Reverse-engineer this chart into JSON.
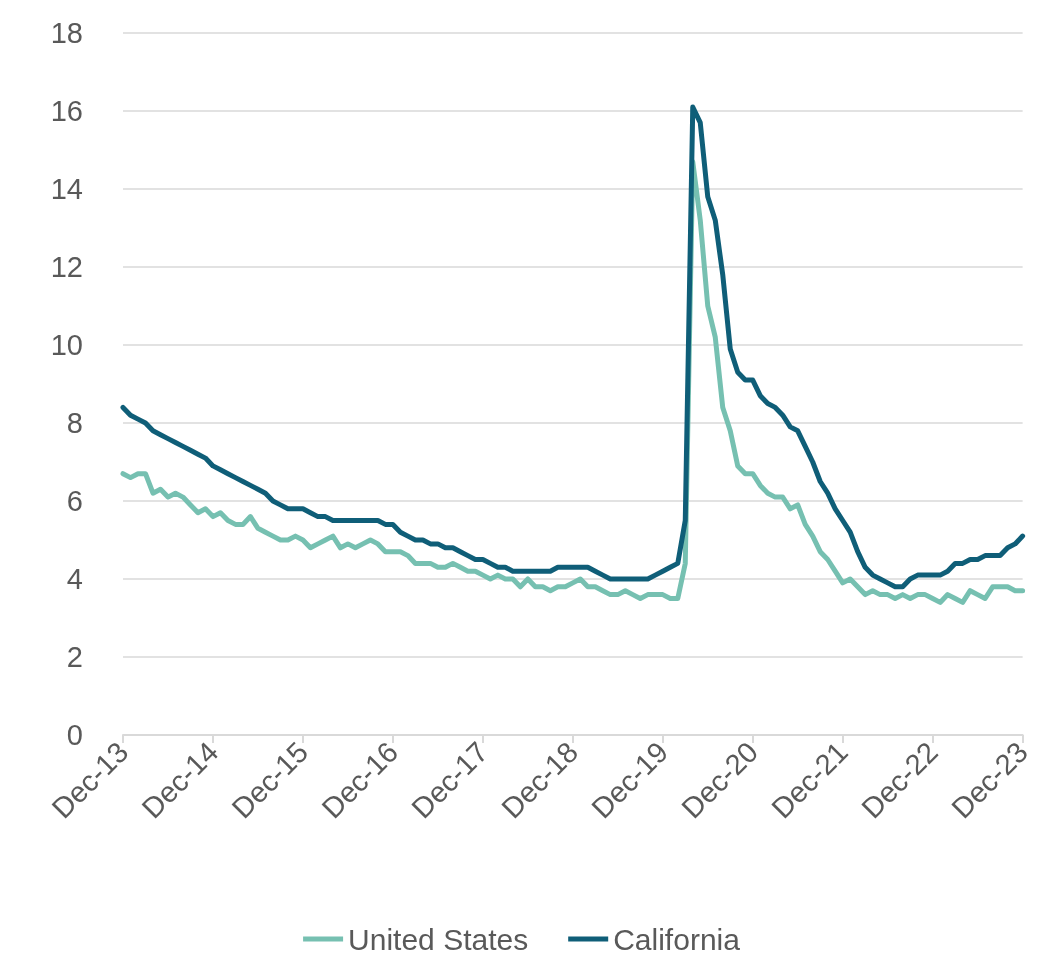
{
  "chart_data": {
    "type": "line",
    "categories": [
      "Dec-13",
      null,
      null,
      null,
      null,
      null,
      null,
      null,
      null,
      null,
      null,
      null,
      "Dec-14",
      null,
      null,
      null,
      null,
      null,
      null,
      null,
      null,
      null,
      null,
      null,
      "Dec-15",
      null,
      null,
      null,
      null,
      null,
      null,
      null,
      null,
      null,
      null,
      null,
      "Dec-16",
      null,
      null,
      null,
      null,
      null,
      null,
      null,
      null,
      null,
      null,
      null,
      "Dec-17",
      null,
      null,
      null,
      null,
      null,
      null,
      null,
      null,
      null,
      null,
      null,
      "Dec-18",
      null,
      null,
      null,
      null,
      null,
      null,
      null,
      null,
      null,
      null,
      null,
      "Dec-19",
      null,
      null,
      null,
      null,
      null,
      null,
      null,
      null,
      null,
      null,
      null,
      "Dec-20",
      null,
      null,
      null,
      null,
      null,
      null,
      null,
      null,
      null,
      null,
      null,
      "Dec-21",
      null,
      null,
      null,
      null,
      null,
      null,
      null,
      null,
      null,
      null,
      null,
      "Dec-22",
      null,
      null,
      null,
      null,
      null,
      null,
      null,
      null,
      null,
      null,
      null,
      "Dec-23"
    ],
    "series": [
      {
        "name": "United States",
        "color": "#76c0b1",
        "values": [
          6.7,
          6.6,
          6.7,
          6.7,
          6.2,
          6.3,
          6.1,
          6.2,
          6.1,
          5.9,
          5.7,
          5.8,
          5.6,
          5.7,
          5.5,
          5.4,
          5.4,
          5.6,
          5.3,
          5.2,
          5.1,
          5.0,
          5.0,
          5.1,
          5.0,
          4.8,
          4.9,
          5.0,
          5.1,
          4.8,
          4.9,
          4.8,
          4.9,
          5.0,
          4.9,
          4.7,
          4.7,
          4.7,
          4.6,
          4.4,
          4.4,
          4.4,
          4.3,
          4.3,
          4.4,
          4.3,
          4.2,
          4.2,
          4.1,
          4.0,
          4.1,
          4.0,
          4.0,
          3.8,
          4.0,
          3.8,
          3.8,
          3.7,
          3.8,
          3.8,
          3.9,
          4.0,
          3.8,
          3.8,
          3.7,
          3.6,
          3.6,
          3.7,
          3.6,
          3.5,
          3.6,
          3.6,
          3.6,
          3.5,
          3.5,
          4.4,
          14.7,
          13.2,
          11.0,
          10.2,
          8.4,
          7.8,
          6.9,
          6.7,
          6.7,
          6.4,
          6.2,
          6.1,
          6.1,
          5.8,
          5.9,
          5.4,
          5.1,
          4.7,
          4.5,
          4.2,
          3.9,
          4.0,
          3.8,
          3.6,
          3.7,
          3.6,
          3.6,
          3.5,
          3.6,
          3.5,
          3.6,
          3.6,
          3.5,
          3.4,
          3.6,
          3.5,
          3.4,
          3.7,
          3.6,
          3.5,
          3.8,
          3.8,
          3.8,
          3.7,
          3.7
        ]
      },
      {
        "name": "California",
        "color": "#0f5e78",
        "values": [
          8.4,
          8.2,
          8.1,
          8.0,
          7.8,
          7.7,
          7.6,
          7.5,
          7.4,
          7.3,
          7.2,
          7.1,
          6.9,
          6.8,
          6.7,
          6.6,
          6.5,
          6.4,
          6.3,
          6.2,
          6.0,
          5.9,
          5.8,
          5.8,
          5.8,
          5.7,
          5.6,
          5.6,
          5.5,
          5.5,
          5.5,
          5.5,
          5.5,
          5.5,
          5.5,
          5.4,
          5.4,
          5.2,
          5.1,
          5.0,
          5.0,
          4.9,
          4.9,
          4.8,
          4.8,
          4.7,
          4.6,
          4.5,
          4.5,
          4.4,
          4.3,
          4.3,
          4.2,
          4.2,
          4.2,
          4.2,
          4.2,
          4.2,
          4.3,
          4.3,
          4.3,
          4.3,
          4.3,
          4.2,
          4.1,
          4.0,
          4.0,
          4.0,
          4.0,
          4.0,
          4.0,
          4.1,
          4.2,
          4.3,
          4.4,
          5.5,
          16.1,
          15.7,
          13.8,
          13.2,
          11.8,
          9.9,
          9.3,
          9.1,
          9.1,
          8.7,
          8.5,
          8.4,
          8.2,
          7.9,
          7.8,
          7.4,
          7.0,
          6.5,
          6.2,
          5.8,
          5.5,
          5.2,
          4.7,
          4.3,
          4.1,
          4.0,
          3.9,
          3.8,
          3.8,
          4.0,
          4.1,
          4.1,
          4.1,
          4.1,
          4.2,
          4.4,
          4.4,
          4.5,
          4.5,
          4.6,
          4.6,
          4.6,
          4.8,
          4.9,
          5.1
        ]
      }
    ],
    "ylim": [
      0,
      18
    ],
    "yticks": [
      0,
      2,
      4,
      6,
      8,
      10,
      12,
      14,
      16,
      18
    ],
    "grid": "y",
    "legend": "bottom",
    "marker": "none",
    "line_style": "solid"
  }
}
